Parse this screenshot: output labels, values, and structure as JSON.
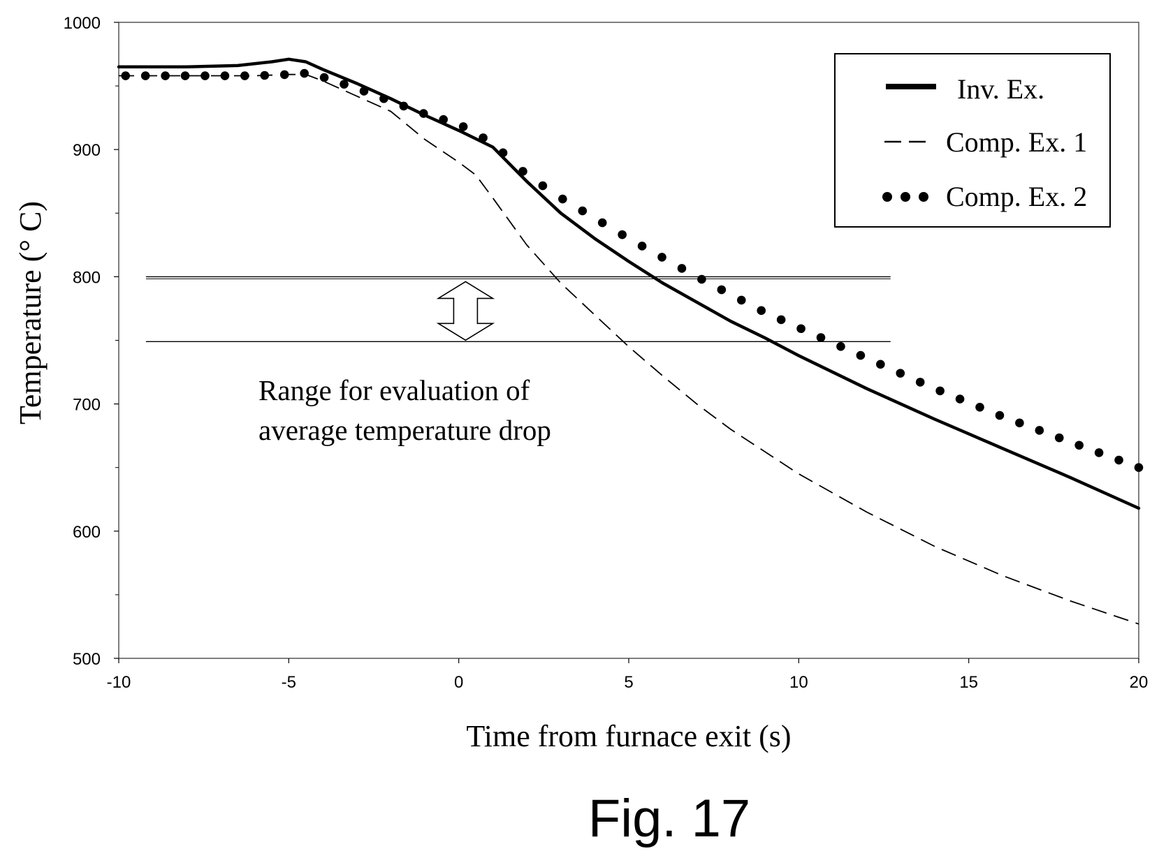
{
  "chart_data": {
    "type": "line",
    "title": "",
    "xlabel": "Time from furnace exit (s)",
    "ylabel": "Temperature (° C)",
    "xlim": [
      -10,
      20
    ],
    "ylim": [
      500,
      1000
    ],
    "x_ticks": [
      "-10",
      "-5",
      "0",
      "5",
      "10",
      "15",
      "20"
    ],
    "y_ticks": [
      "500",
      "600",
      "700",
      "800",
      "900",
      "1000"
    ],
    "legend_position": "top-right",
    "grid": false,
    "series": [
      {
        "name": "Inv. Ex.",
        "style": "solid",
        "x": [
          -10,
          -8,
          -6.5,
          -5.5,
          -5,
          -4.5,
          -4,
          -3,
          -2,
          -1,
          0,
          1,
          2,
          3,
          4,
          5,
          6,
          7,
          8,
          9,
          10,
          12,
          14,
          16,
          18,
          20
        ],
        "y": [
          965,
          965,
          966,
          969,
          971,
          969,
          963,
          952,
          940,
          927,
          915,
          902,
          875,
          850,
          830,
          812,
          795,
          780,
          765,
          752,
          738,
          712,
          688,
          665,
          642,
          618
        ]
      },
      {
        "name": "Comp. Ex. 1",
        "style": "dashed",
        "x": [
          -10,
          -8,
          -6,
          -5,
          -4.5,
          -4,
          -3,
          -2,
          -1,
          0,
          0.5,
          1,
          2,
          3,
          4,
          5,
          6,
          7,
          8,
          10,
          12,
          14,
          16,
          18,
          20
        ],
        "y": [
          958,
          958,
          958,
          959,
          959,
          954,
          942,
          930,
          908,
          890,
          880,
          862,
          825,
          795,
          770,
          745,
          722,
          700,
          680,
          645,
          615,
          588,
          565,
          545,
          527
        ]
      },
      {
        "name": "Comp. Ex. 2",
        "style": "dotted",
        "x": [
          -10,
          -8,
          -6,
          -5,
          -4.5,
          -4,
          -3,
          -2,
          -1,
          0,
          1,
          2,
          3,
          4,
          5,
          6,
          7,
          8,
          9,
          10,
          12,
          14,
          16,
          18,
          20
        ],
        "y": [
          958,
          958,
          958,
          959,
          960,
          957,
          948,
          938,
          928,
          920,
          905,
          880,
          862,
          846,
          830,
          815,
          800,
          786,
          772,
          760,
          736,
          712,
          690,
          670,
          650
        ]
      }
    ],
    "reference_lines": [
      {
        "y": 800
      },
      {
        "y": 749
      }
    ],
    "annotation": [
      "Range for evaluation of",
      "average temperature drop"
    ],
    "figure_label": "Fig. 17"
  }
}
